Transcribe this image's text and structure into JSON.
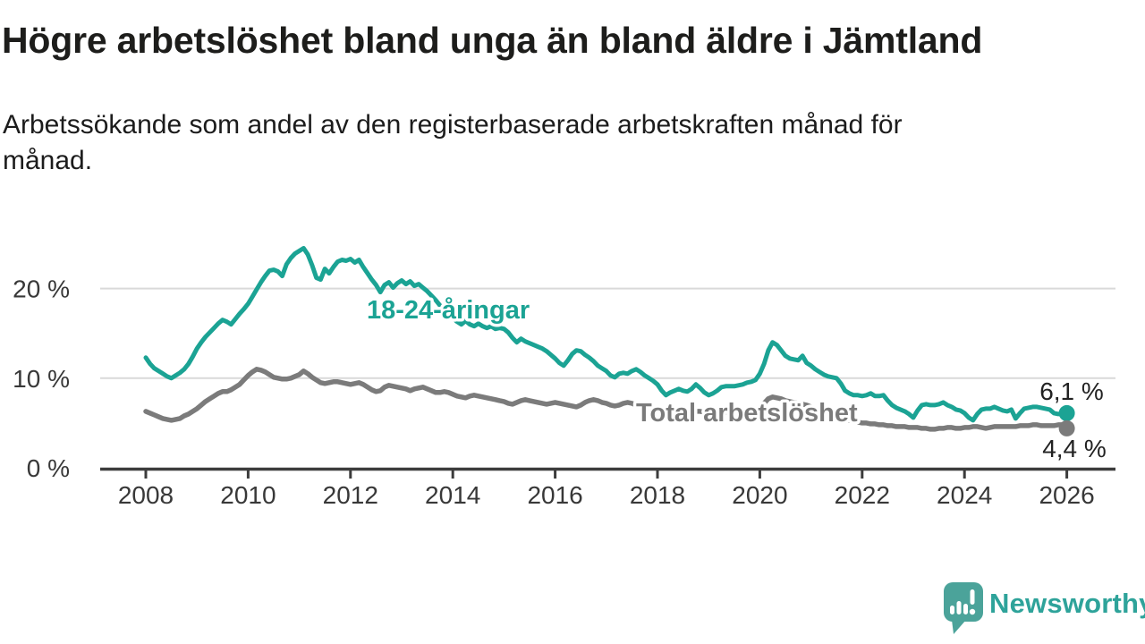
{
  "title": "Högre arbetslöshet bland unga än bland äldre i Jämtland",
  "subtitle": "Arbetssökande som andel av den registerbaserade arbetskraften månad för månad.",
  "branding": {
    "logo_text": "Newsworthy",
    "logo_icon": "speech-bubble-bar-chart-icon",
    "brand_color": "#2EA39A"
  },
  "chart_data": {
    "type": "line",
    "unit": "%",
    "frequency": "monthly",
    "x_start": "2008-01",
    "x_end": "2026-01",
    "ylim": [
      0,
      26
    ],
    "y_ticks": [
      {
        "value": 0,
        "label": "0 %"
      },
      {
        "value": 10,
        "label": "10 %"
      },
      {
        "value": 20,
        "label": "20 %"
      }
    ],
    "x_ticks": [
      2008,
      2010,
      2012,
      2014,
      2016,
      2018,
      2020,
      2022,
      2024,
      2026
    ],
    "grid": "horizontal-only",
    "legend_position": "inline-labels",
    "colors": {
      "youth": "#1BA394",
      "total": "#7B7B7B",
      "grid": "#d9d9d9",
      "axis": "#3c3c3c",
      "tick_text": "#383838",
      "end_label_text": "#222222"
    },
    "series": [
      {
        "name": "18-24-åringar",
        "color": "#1BA394",
        "end_label": "6,1 %",
        "end_value": 6.1,
        "values": [
          12.3,
          11.6,
          11.1,
          10.8,
          10.5,
          10.2,
          10.0,
          10.3,
          10.6,
          11.0,
          11.6,
          12.4,
          13.3,
          14.0,
          14.6,
          15.1,
          15.6,
          16.1,
          16.5,
          16.3,
          16.0,
          16.6,
          17.2,
          17.7,
          18.3,
          19.1,
          19.9,
          20.7,
          21.4,
          22.0,
          22.1,
          21.9,
          21.4,
          22.7,
          23.4,
          23.9,
          24.2,
          24.5,
          23.8,
          22.6,
          21.2,
          21.0,
          22.2,
          21.7,
          22.4,
          23.0,
          23.2,
          23.1,
          23.3,
          22.9,
          23.2,
          22.4,
          21.7,
          21.0,
          20.4,
          19.6,
          20.4,
          20.7,
          20.1,
          20.6,
          20.9,
          20.5,
          20.8,
          20.3,
          20.5,
          20.1,
          19.7,
          19.2,
          18.7,
          18.1,
          17.6,
          17.1,
          16.7,
          16.3,
          16.0,
          16.4,
          16.0,
          15.8,
          16.1,
          15.8,
          15.6,
          15.8,
          15.5,
          15.6,
          15.5,
          15.1,
          14.5,
          14.0,
          14.4,
          14.1,
          13.9,
          13.7,
          13.5,
          13.3,
          13.0,
          12.6,
          12.2,
          11.7,
          11.4,
          12.0,
          12.7,
          13.1,
          13.0,
          12.6,
          12.3,
          11.9,
          11.4,
          11.1,
          10.8,
          10.3,
          10.1,
          10.5,
          10.6,
          10.5,
          10.8,
          11.0,
          10.7,
          10.3,
          10.0,
          9.7,
          9.3,
          8.6,
          8.1,
          8.4,
          8.6,
          8.8,
          8.6,
          8.5,
          8.8,
          9.3,
          8.9,
          8.4,
          8.1,
          8.3,
          8.6,
          9.0,
          9.1,
          9.1,
          9.1,
          9.2,
          9.3,
          9.5,
          9.6,
          9.8,
          10.5,
          11.6,
          13.1,
          14.0,
          13.7,
          13.1,
          12.5,
          12.2,
          12.1,
          12.0,
          12.5,
          11.7,
          11.4,
          11.0,
          10.7,
          10.4,
          10.2,
          10.1,
          10.0,
          9.4,
          8.6,
          8.3,
          8.1,
          8.1,
          8.0,
          8.1,
          8.3,
          8.0,
          8.0,
          8.1,
          7.5,
          7.0,
          6.7,
          6.5,
          6.3,
          6.0,
          5.6,
          6.4,
          7.0,
          7.1,
          7.0,
          7.0,
          7.1,
          7.3,
          7.0,
          6.8,
          6.5,
          6.4,
          6.1,
          5.6,
          5.3,
          6.0,
          6.5,
          6.6,
          6.6,
          6.8,
          6.6,
          6.4,
          6.3,
          6.5,
          5.5,
          6.1,
          6.6,
          6.7,
          6.8,
          6.8,
          6.7,
          6.6,
          6.5,
          6.1,
          6.0,
          6.0,
          6.1
        ]
      },
      {
        "name": "Total arbetslöshet",
        "color": "#7B7B7B",
        "end_label": "4,4 %",
        "end_value": 4.4,
        "values": [
          6.3,
          6.1,
          5.9,
          5.7,
          5.5,
          5.4,
          5.3,
          5.4,
          5.5,
          5.8,
          6.0,
          6.3,
          6.6,
          7.0,
          7.4,
          7.7,
          8.0,
          8.3,
          8.5,
          8.5,
          8.7,
          9.0,
          9.3,
          9.8,
          10.3,
          10.7,
          11.0,
          10.9,
          10.7,
          10.4,
          10.1,
          10.0,
          9.9,
          9.9,
          10.0,
          10.2,
          10.4,
          10.8,
          10.5,
          10.1,
          9.8,
          9.5,
          9.4,
          9.5,
          9.6,
          9.6,
          9.5,
          9.4,
          9.3,
          9.4,
          9.5,
          9.3,
          9.0,
          8.7,
          8.5,
          8.6,
          9.0,
          9.2,
          9.1,
          9.0,
          8.9,
          8.8,
          8.6,
          8.8,
          8.9,
          9.0,
          8.8,
          8.6,
          8.4,
          8.4,
          8.5,
          8.4,
          8.2,
          8.0,
          7.9,
          7.8,
          8.0,
          8.1,
          8.0,
          7.9,
          7.8,
          7.7,
          7.6,
          7.5,
          7.4,
          7.2,
          7.1,
          7.3,
          7.5,
          7.6,
          7.5,
          7.4,
          7.3,
          7.2,
          7.1,
          7.2,
          7.3,
          7.2,
          7.1,
          7.0,
          6.9,
          6.8,
          7.0,
          7.3,
          7.5,
          7.6,
          7.5,
          7.3,
          7.2,
          7.0,
          6.9,
          7.0,
          7.2,
          7.3,
          7.2,
          7.0,
          6.9,
          6.8,
          6.7,
          6.6,
          6.5,
          6.4,
          6.3,
          6.3,
          6.4,
          6.4,
          6.3,
          6.2,
          6.2,
          6.3,
          6.3,
          6.2,
          6.1,
          6.0,
          6.0,
          6.1,
          6.2,
          6.2,
          6.1,
          6.1,
          6.2,
          6.3,
          6.4,
          6.5,
          6.8,
          7.2,
          7.7,
          7.9,
          7.8,
          7.7,
          7.5,
          7.4,
          7.3,
          7.2,
          7.1,
          7.0,
          6.8,
          6.6,
          6.4,
          6.2,
          6.0,
          5.9,
          5.7,
          5.6,
          5.4,
          5.3,
          5.2,
          5.1,
          5.0,
          5.0,
          4.9,
          4.9,
          4.8,
          4.8,
          4.7,
          4.7,
          4.6,
          4.6,
          4.6,
          4.5,
          4.5,
          4.5,
          4.4,
          4.4,
          4.3,
          4.3,
          4.4,
          4.4,
          4.5,
          4.5,
          4.4,
          4.4,
          4.5,
          4.5,
          4.6,
          4.6,
          4.5,
          4.4,
          4.5,
          4.6,
          4.6,
          4.6,
          4.6,
          4.6,
          4.6,
          4.7,
          4.7,
          4.7,
          4.8,
          4.8,
          4.7,
          4.7,
          4.7,
          4.7,
          4.8,
          4.8,
          4.4
        ]
      }
    ]
  }
}
